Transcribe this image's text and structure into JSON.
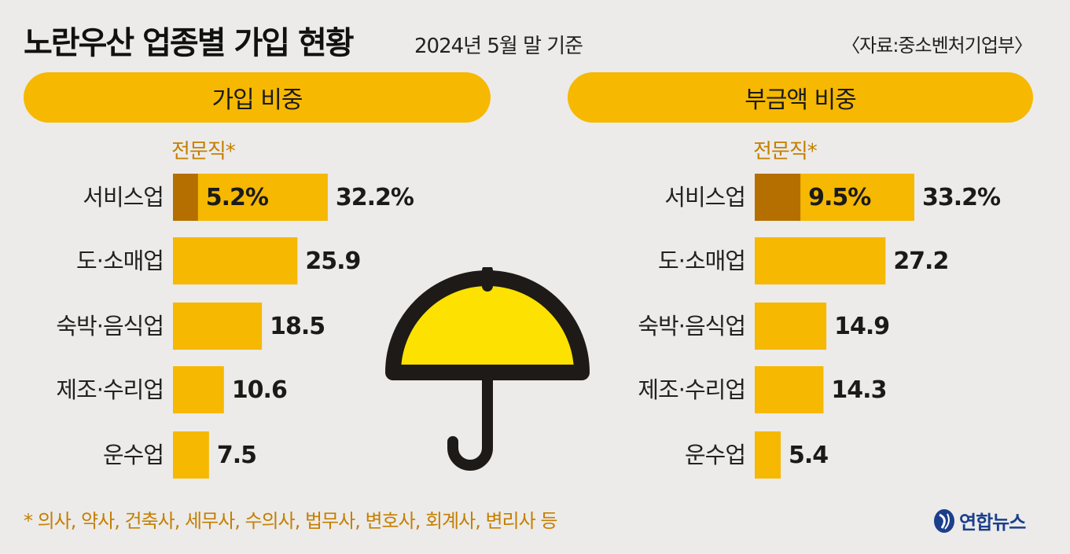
{
  "title": "노란우산 업종별 가입 현황",
  "subtitle": "2024년 5월 말 기준",
  "source": "〈자료:중소벤처기업부〉",
  "footnote": "* 의사, 약사, 건축사, 세무사, 수의사, 법무사, 변호사, 회계사, 변리사 등",
  "logo_text": "연합뉴스",
  "colors": {
    "bar": "#f6b800",
    "professional": "#b46f00",
    "accent_text": "#c57f00",
    "background": "#ecebe9"
  },
  "icons": [
    "umbrella-icon",
    "yonhap-logo-icon"
  ],
  "chart_data": [
    {
      "type": "bar",
      "title": "가입 비중",
      "categories": [
        "서비스업",
        "도·소매업",
        "숙박·음식업",
        "제조·수리업",
        "운수업"
      ],
      "values": [
        32.2,
        25.9,
        18.5,
        10.6,
        7.5
      ],
      "value_labels": [
        "32.2%",
        "25.9",
        "18.5",
        "10.6",
        "7.5"
      ],
      "professional": {
        "label": "전문직*",
        "category": "서비스업",
        "value": 5.2,
        "value_label": "5.2%"
      },
      "xlim": [
        0,
        33.2
      ]
    },
    {
      "type": "bar",
      "title": "부금액 비중",
      "categories": [
        "서비스업",
        "도·소매업",
        "숙박·음식업",
        "제조·수리업",
        "운수업"
      ],
      "values": [
        33.2,
        27.2,
        14.9,
        14.3,
        5.4
      ],
      "value_labels": [
        "33.2%",
        "27.2",
        "14.9",
        "14.3",
        "5.4"
      ],
      "professional": {
        "label": "전문직*",
        "category": "서비스업",
        "value": 9.5,
        "value_label": "9.5%"
      },
      "xlim": [
        0,
        33.2
      ]
    }
  ]
}
